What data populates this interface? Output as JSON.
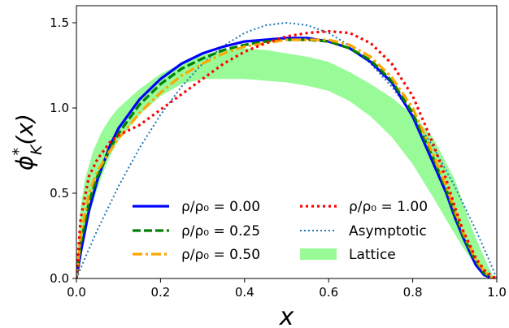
{
  "chart_data": {
    "type": "line",
    "title": "",
    "xlabel": "x",
    "ylabel": "ϕ*_K(x)",
    "xlim": [
      0.0,
      1.0
    ],
    "ylim": [
      0.0,
      1.6
    ],
    "x_ticks": [
      "0.0",
      "0.2",
      "0.4",
      "0.6",
      "0.8",
      "1.0"
    ],
    "y_ticks": [
      "0.0",
      "0.5",
      "1.0",
      "1.5"
    ],
    "grid": false,
    "legend_position": "bottom-center",
    "series": [
      {
        "name": "ρ/ρ₀ = 0.00",
        "style": "solid",
        "color": "#0000ff",
        "x": [
          0,
          0.01,
          0.03,
          0.05,
          0.08,
          0.1,
          0.15,
          0.2,
          0.25,
          0.3,
          0.35,
          0.4,
          0.45,
          0.5,
          0.55,
          0.6,
          0.65,
          0.7,
          0.75,
          0.8,
          0.85,
          0.88,
          0.9,
          0.92,
          0.95,
          0.97,
          0.99,
          1.0
        ],
        "y": [
          0,
          0.15,
          0.4,
          0.58,
          0.78,
          0.88,
          1.05,
          1.17,
          1.26,
          1.32,
          1.36,
          1.39,
          1.4,
          1.41,
          1.41,
          1.39,
          1.35,
          1.27,
          1.15,
          0.95,
          0.67,
          0.5,
          0.36,
          0.24,
          0.08,
          0.02,
          0.0,
          0.0
        ]
      },
      {
        "name": "ρ/ρ₀ = 0.25",
        "style": "dashed",
        "color": "#008000",
        "x": [
          0,
          0.01,
          0.03,
          0.05,
          0.08,
          0.1,
          0.15,
          0.2,
          0.25,
          0.3,
          0.35,
          0.4,
          0.45,
          0.5,
          0.55,
          0.6,
          0.65,
          0.7,
          0.75,
          0.8,
          0.85,
          0.88,
          0.9,
          0.92,
          0.95,
          0.97,
          0.99,
          1.0
        ],
        "y": [
          0,
          0.2,
          0.45,
          0.6,
          0.76,
          0.85,
          1.02,
          1.14,
          1.23,
          1.29,
          1.34,
          1.37,
          1.39,
          1.4,
          1.4,
          1.39,
          1.35,
          1.28,
          1.16,
          0.97,
          0.7,
          0.52,
          0.38,
          0.25,
          0.1,
          0.03,
          0.0,
          0.0
        ]
      },
      {
        "name": "ρ/ρ₀ = 0.50",
        "style": "dashdot",
        "color": "#ffa500",
        "x": [
          0,
          0.01,
          0.03,
          0.05,
          0.08,
          0.1,
          0.15,
          0.2,
          0.25,
          0.3,
          0.35,
          0.4,
          0.45,
          0.5,
          0.55,
          0.6,
          0.65,
          0.7,
          0.75,
          0.8,
          0.85,
          0.88,
          0.9,
          0.92,
          0.95,
          0.97,
          0.99,
          1.0
        ],
        "y": [
          0,
          0.25,
          0.5,
          0.63,
          0.75,
          0.82,
          0.97,
          1.09,
          1.19,
          1.26,
          1.32,
          1.36,
          1.38,
          1.4,
          1.4,
          1.4,
          1.37,
          1.3,
          1.18,
          1.0,
          0.72,
          0.54,
          0.4,
          0.27,
          0.11,
          0.04,
          0.0,
          0.0
        ]
      },
      {
        "name": "ρ/ρ₀ = 1.00",
        "style": "dotted",
        "color": "#ff0000",
        "x": [
          0,
          0.01,
          0.03,
          0.05,
          0.08,
          0.1,
          0.15,
          0.2,
          0.25,
          0.3,
          0.35,
          0.4,
          0.45,
          0.5,
          0.55,
          0.6,
          0.65,
          0.7,
          0.75,
          0.8,
          0.85,
          0.88,
          0.9,
          0.92,
          0.95,
          0.97,
          0.99,
          1.0
        ],
        "y": [
          0,
          0.35,
          0.6,
          0.7,
          0.8,
          0.84,
          0.9,
          0.99,
          1.08,
          1.17,
          1.26,
          1.33,
          1.38,
          1.42,
          1.44,
          1.45,
          1.44,
          1.38,
          1.26,
          1.07,
          0.78,
          0.58,
          0.42,
          0.28,
          0.12,
          0.05,
          0.01,
          0.0
        ]
      },
      {
        "name": "Asymptotic",
        "style": "dotted-fine",
        "color": "#1f77b4",
        "formula": "6*x*(1-x)",
        "x": [
          0,
          0.025,
          0.05,
          0.1,
          0.15,
          0.2,
          0.25,
          0.3,
          0.35,
          0.4,
          0.45,
          0.5,
          0.55,
          0.6,
          0.65,
          0.7,
          0.75,
          0.8,
          0.85,
          0.9,
          0.95,
          0.975,
          1.0
        ],
        "y": [
          0,
          0.146,
          0.285,
          0.54,
          0.765,
          0.96,
          1.125,
          1.26,
          1.365,
          1.44,
          1.485,
          1.5,
          1.485,
          1.44,
          1.365,
          1.26,
          1.125,
          0.96,
          0.765,
          0.54,
          0.285,
          0.146,
          0.0
        ]
      }
    ],
    "band": {
      "name": "Lattice",
      "color": "#98fb98",
      "x": [
        0,
        0.01,
        0.02,
        0.04,
        0.06,
        0.08,
        0.1,
        0.15,
        0.2,
        0.25,
        0.3,
        0.35,
        0.4,
        0.45,
        0.5,
        0.55,
        0.6,
        0.65,
        0.7,
        0.75,
        0.8,
        0.85,
        0.9,
        0.92,
        0.94,
        0.96,
        0.98,
        0.99,
        1.0
      ],
      "lower": [
        0,
        0.12,
        0.28,
        0.45,
        0.6,
        0.72,
        0.81,
        0.96,
        1.07,
        1.14,
        1.17,
        1.17,
        1.17,
        1.16,
        1.15,
        1.13,
        1.1,
        1.04,
        0.95,
        0.83,
        0.67,
        0.47,
        0.26,
        0.18,
        0.11,
        0.05,
        0.01,
        0.0,
        0.0
      ],
      "upper": [
        0,
        0.42,
        0.58,
        0.75,
        0.86,
        0.94,
        1.0,
        1.11,
        1.2,
        1.26,
        1.31,
        1.34,
        1.35,
        1.34,
        1.32,
        1.3,
        1.27,
        1.21,
        1.14,
        1.06,
        0.96,
        0.82,
        0.58,
        0.44,
        0.3,
        0.18,
        0.07,
        0.02,
        0.0
      ]
    }
  }
}
